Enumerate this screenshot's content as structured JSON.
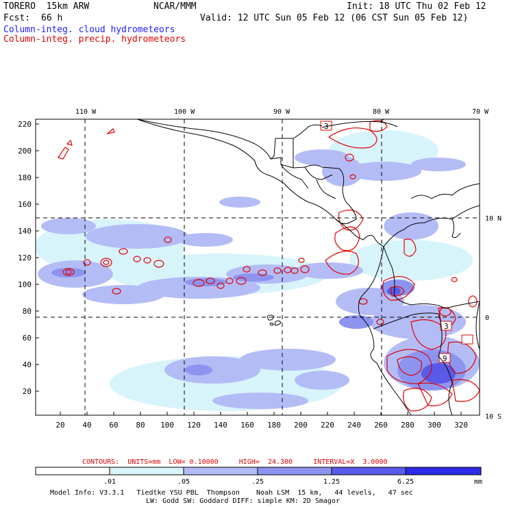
{
  "header": {
    "model": "TORERO  15km ARW",
    "org": "NCAR/MMM",
    "init": "Init: 18 UTC Thu 02 Feb 12",
    "fcst_label": "Fcst:",
    "fcst_hours": "66 h",
    "valid": "Valid: 12 UTC Sun 05 Feb 12 (06 CST Sun 05 Feb 12)",
    "field1": "Column-integ. cloud hydrometeors",
    "field2": "Column-integ. precip. hydrometeors"
  },
  "map": {
    "lon_labels": [
      "110 W",
      "100 W",
      "90 W",
      "80 W",
      "70 W"
    ],
    "lat_labels": [
      "10 N",
      "0",
      "10 S"
    ],
    "y_ticks": [
      "220",
      "200",
      "180",
      "160",
      "140",
      "120",
      "100",
      "80",
      "60",
      "40",
      "20"
    ],
    "x_ticks": [
      "20",
      "40",
      "60",
      "80",
      "100",
      "120",
      "140",
      "160",
      "180",
      "200",
      "220",
      "240",
      "260",
      "280",
      "300",
      "320"
    ],
    "contour_labels": [
      "3",
      "3",
      "9"
    ]
  },
  "contour_info": "CONTOURS:  UNITS=mm  LOW= 0.10000     HIGH=  24.300     INTERVAL=X  3.0000",
  "colorbar": {
    "colors": [
      "#ffffff",
      "#d8f4fb",
      "#b4bcf6",
      "#8c94f0",
      "#5a5ae8",
      "#2a2ae8"
    ],
    "labels": [
      ".01",
      ".05",
      ".25",
      "1.25",
      "6.25"
    ],
    "units": "mm"
  },
  "footer": {
    "line1": "Model Info: V3.3.1   Tiedtke YSU PBL  Thompson    Noah LSM  15 km,   44 levels,   47 sec",
    "line2": "LW: Godd SW: Goddard DIFF: simple KM: 2D Smagor"
  }
}
